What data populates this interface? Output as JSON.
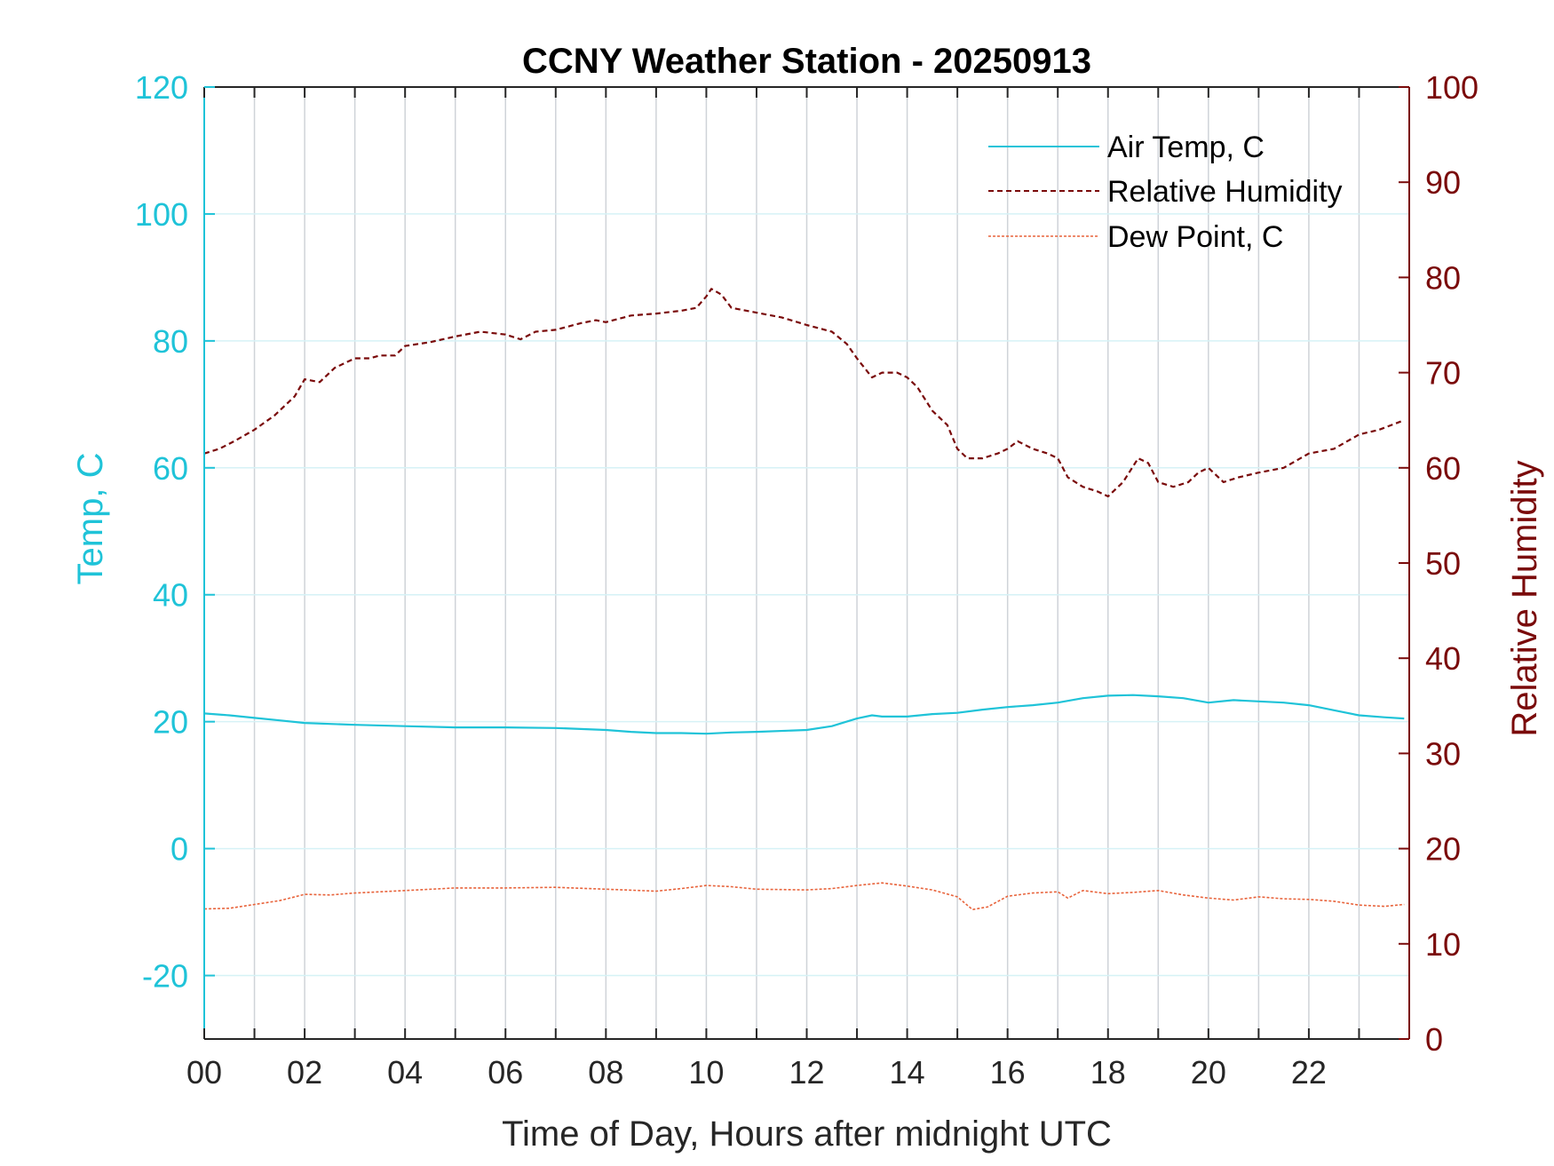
{
  "chart_data": {
    "type": "line",
    "title": "CCNY Weather Station - 20250913",
    "xlabel": "Time of Day, Hours after midnight UTC",
    "ylabel_left": "Temp, C",
    "ylabel_right": "Relative Humidity",
    "xlim": [
      0,
      24
    ],
    "ylim_left": [
      -30,
      120
    ],
    "ylim_right": [
      0,
      100
    ],
    "x_ticks": [
      0,
      2,
      4,
      6,
      8,
      10,
      12,
      14,
      16,
      18,
      20,
      22
    ],
    "x_tick_labels": [
      "00",
      "02",
      "04",
      "06",
      "08",
      "10",
      "12",
      "14",
      "16",
      "18",
      "20",
      "22"
    ],
    "y_left_ticks": [
      -20,
      0,
      20,
      40,
      60,
      80,
      100,
      120
    ],
    "y_left_tick_labels": [
      "-20",
      "0",
      "20",
      "40",
      "60",
      "80",
      "100",
      "120"
    ],
    "y_right_ticks": [
      0,
      10,
      20,
      30,
      40,
      50,
      60,
      70,
      80,
      90,
      100
    ],
    "y_right_tick_labels": [
      "0",
      "10",
      "20",
      "30",
      "40",
      "50",
      "60",
      "70",
      "80",
      "90",
      "100"
    ],
    "grid": true,
    "legend_position": "top-right",
    "colors": {
      "air_temp": "#1fc3d8",
      "humidity": "#7a0a0a",
      "dew_point": "#e8643c",
      "left_axis": "#1fc3d8",
      "right_axis": "#7a0a0a",
      "grid_horizontal": "#d6f2f6",
      "grid_vertical": "#cfd3d8"
    },
    "series": [
      {
        "name": "Air Temp, C",
        "axis": "left",
        "style": "solid",
        "x": [
          0,
          0.5,
          1,
          1.5,
          2,
          3,
          4,
          5,
          6,
          7,
          8,
          8.5,
          9,
          9.5,
          10,
          10.5,
          11,
          12,
          12.5,
          13,
          13.3,
          13.5,
          14,
          14.5,
          15,
          15.5,
          16,
          16.5,
          17,
          17.5,
          18,
          18.5,
          19,
          19.5,
          20,
          20.5,
          21,
          21.5,
          22,
          22.5,
          23,
          23.5,
          23.9
        ],
        "y": [
          21.3,
          21.0,
          20.6,
          20.2,
          19.8,
          19.5,
          19.3,
          19.1,
          19.1,
          19.0,
          18.7,
          18.4,
          18.2,
          18.2,
          18.1,
          18.3,
          18.4,
          18.7,
          19.3,
          20.5,
          21.0,
          20.8,
          20.8,
          21.2,
          21.4,
          21.9,
          22.3,
          22.6,
          23.0,
          23.7,
          24.1,
          24.2,
          24.0,
          23.7,
          23.0,
          23.4,
          23.2,
          23.0,
          22.6,
          21.8,
          21.0,
          20.7,
          20.5
        ]
      },
      {
        "name": "Relative Humidity",
        "axis": "right",
        "style": "dashed",
        "x": [
          0,
          0.3,
          0.6,
          1,
          1.4,
          1.8,
          2,
          2.3,
          2.6,
          3,
          3.3,
          3.5,
          3.8,
          4,
          4.5,
          5,
          5.5,
          6,
          6.3,
          6.6,
          7,
          7.5,
          7.8,
          8,
          8.5,
          9,
          9.5,
          9.8,
          10,
          10.1,
          10.3,
          10.5,
          11,
          11.5,
          12,
          12.5,
          12.8,
          13,
          13.3,
          13.5,
          13.8,
          14,
          14.2,
          14.5,
          14.8,
          15,
          15.2,
          15.5,
          15.8,
          16,
          16.2,
          16.5,
          16.8,
          17,
          17.2,
          17.5,
          17.8,
          18,
          18.3,
          18.6,
          18.8,
          19,
          19.3,
          19.6,
          19.8,
          20,
          20.3,
          20.6,
          21,
          21.5,
          22,
          22.5,
          23,
          23.4,
          23.9
        ],
        "y": [
          61.5,
          62.0,
          62.8,
          64.0,
          65.5,
          67.5,
          69.3,
          69.0,
          70.5,
          71.5,
          71.5,
          71.8,
          71.8,
          72.8,
          73.2,
          73.8,
          74.3,
          74.0,
          73.5,
          74.3,
          74.5,
          75.2,
          75.5,
          75.3,
          76.0,
          76.2,
          76.5,
          76.8,
          78.0,
          78.8,
          78.2,
          76.8,
          76.3,
          75.8,
          75.0,
          74.3,
          73.0,
          71.5,
          69.5,
          70.0,
          70.0,
          69.5,
          68.5,
          66.0,
          64.5,
          62.0,
          61.0,
          61.0,
          61.5,
          62.0,
          62.8,
          62.0,
          61.5,
          61.0,
          59.0,
          58.0,
          57.5,
          57.0,
          58.5,
          61.0,
          60.5,
          58.5,
          58.0,
          58.5,
          59.5,
          60.0,
          58.5,
          59.0,
          59.5,
          60.0,
          61.5,
          62.0,
          63.5,
          64.0,
          65.0
        ]
      },
      {
        "name": "Dew Point, C",
        "axis": "left",
        "style": "dotted",
        "x": [
          0,
          0.5,
          1,
          1.5,
          2,
          2.5,
          3,
          4,
          5,
          6,
          7,
          8,
          9,
          9.5,
          10,
          10.5,
          11,
          12,
          12.5,
          13,
          13.5,
          14,
          14.5,
          15,
          15.3,
          15.6,
          16,
          16.5,
          17,
          17.2,
          17.5,
          18,
          18.5,
          19,
          19.5,
          20,
          20.5,
          21,
          21.5,
          22,
          22.5,
          23,
          23.5,
          23.9
        ],
        "y": [
          -9.5,
          -9.4,
          -8.8,
          -8.2,
          -7.2,
          -7.3,
          -7.0,
          -6.6,
          -6.2,
          -6.2,
          -6.1,
          -6.4,
          -6.7,
          -6.3,
          -5.8,
          -6.0,
          -6.4,
          -6.5,
          -6.3,
          -5.8,
          -5.4,
          -5.9,
          -6.5,
          -7.6,
          -9.6,
          -9.2,
          -7.5,
          -7.0,
          -6.8,
          -7.8,
          -6.6,
          -7.1,
          -6.9,
          -6.6,
          -7.3,
          -7.8,
          -8.1,
          -7.6,
          -7.9,
          -8.0,
          -8.3,
          -8.9,
          -9.1,
          -8.8
        ]
      }
    ]
  }
}
